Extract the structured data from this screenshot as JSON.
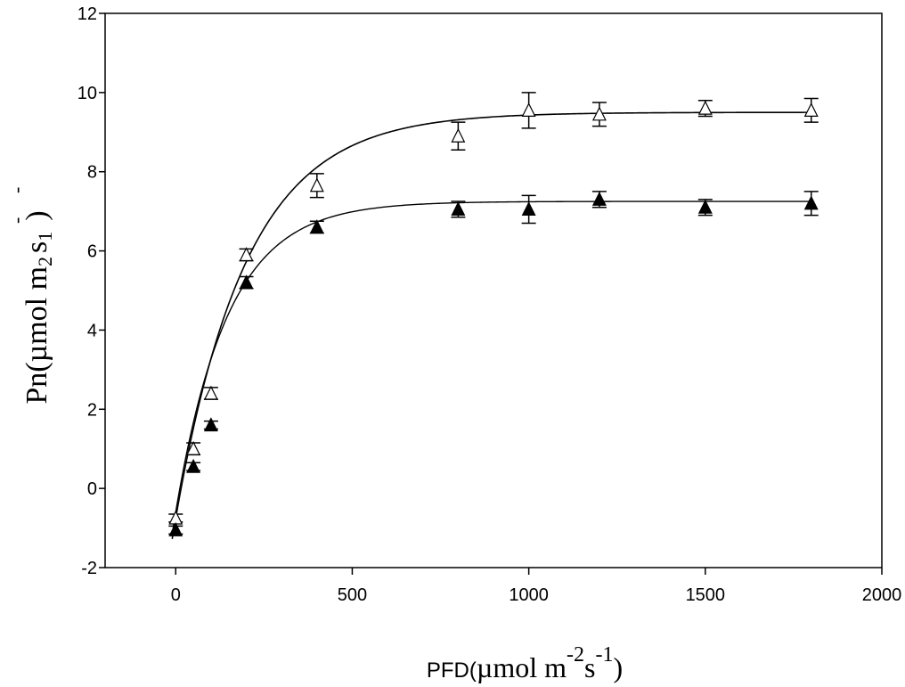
{
  "chart_data": {
    "type": "scatter",
    "title": "",
    "xlabel": {
      "prefix": "PFD(",
      "mu": "µmol m",
      "exp1": "-2",
      "s": "s",
      "exp2": "-1",
      "close": ")"
    },
    "ylabel": {
      "main": "Pn(µmol m",
      "sub2": "2",
      "s": "s",
      "sub1": "1",
      "close": ")",
      "dash1": "-",
      "dash2": "-"
    },
    "xlim": [
      -200,
      2000
    ],
    "ylim": [
      -2,
      12
    ],
    "x_ticks": [
      0,
      500,
      1000,
      1500,
      2000
    ],
    "x_tick_labels": [
      "0",
      "500",
      "1000",
      "1500",
      "2000"
    ],
    "y_ticks": [
      -2,
      0,
      2,
      4,
      6,
      8,
      10,
      12
    ],
    "y_tick_labels": [
      "-2",
      "0",
      "2",
      "4",
      "6",
      "8",
      "10",
      "12"
    ],
    "grid": false,
    "legend": "none",
    "series": [
      {
        "marker": "open-triangle",
        "x": [
          0,
          50,
          100,
          200,
          400,
          800,
          1000,
          1200,
          1500,
          1800
        ],
        "y": [
          -0.75,
          1.0,
          2.4,
          5.9,
          7.65,
          8.9,
          9.55,
          9.45,
          9.6,
          9.55
        ],
        "err": [
          0.1,
          0.15,
          0.15,
          0.15,
          0.3,
          0.35,
          0.45,
          0.3,
          0.2,
          0.3
        ],
        "fit": {
          "pmax": 9.5,
          "k": 0.005,
          "r": 0.75
        }
      },
      {
        "marker": "filled-triangle",
        "x": [
          0,
          50,
          100,
          200,
          400,
          800,
          1000,
          1200,
          1500,
          1800
        ],
        "y": [
          -1.05,
          0.55,
          1.6,
          5.2,
          6.6,
          7.05,
          7.05,
          7.3,
          7.1,
          7.2
        ],
        "err": [
          0.1,
          0.1,
          0.1,
          0.15,
          0.15,
          0.2,
          0.35,
          0.2,
          0.2,
          0.3
        ],
        "fit": {
          "pmax": 7.25,
          "k": 0.0068,
          "r": 0.6
        }
      }
    ]
  }
}
